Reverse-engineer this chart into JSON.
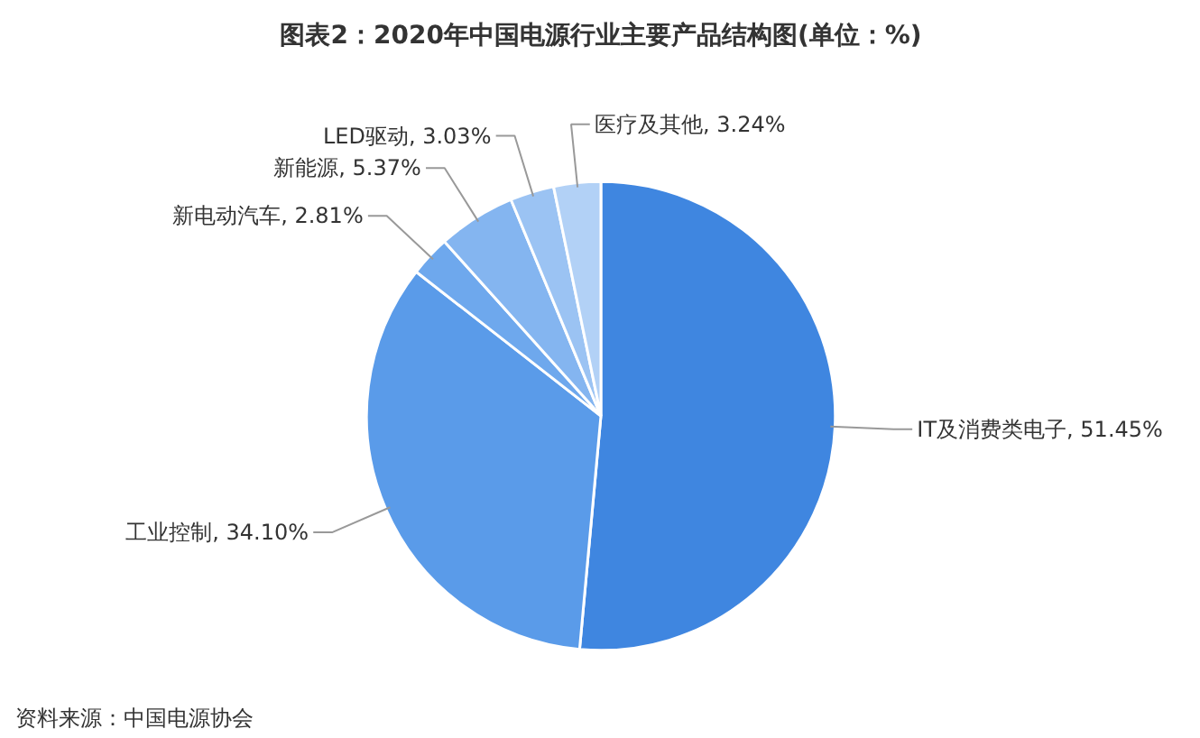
{
  "chart_data": {
    "type": "pie",
    "title": "图表2：2020年中国电源行业主要产品结构图(单位：%)",
    "categories": [
      "IT及消费类电子",
      "工业控制",
      "新电动汽车",
      "新能源",
      "LED驱动",
      "医疗及其他"
    ],
    "values": [
      51.45,
      34.1,
      2.81,
      5.37,
      3.03,
      3.24
    ],
    "value_labels": [
      "51.45%",
      "34.10%",
      "2.81%",
      "5.37%",
      "3.03%",
      "3.24%"
    ],
    "colors": [
      "#3f86e0",
      "#5a9be9",
      "#6ea8ed",
      "#84b5f0",
      "#9bc3f3",
      "#b2d1f6"
    ],
    "annotations": [
      "资料来源：中国电源协会"
    ]
  }
}
